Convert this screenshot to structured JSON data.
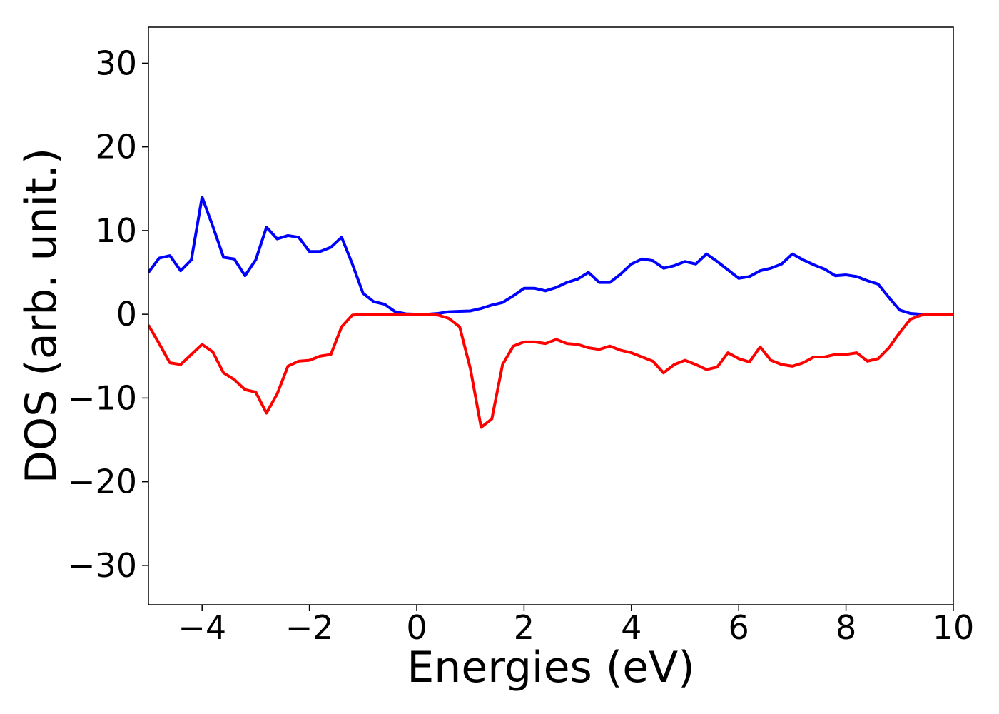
{
  "chart_data": {
    "type": "line",
    "x_label": "Energies (eV)",
    "y_label": "DOS (arb. unit.)",
    "x": [
      -5.0,
      -4.8,
      -4.6,
      -4.4,
      -4.2,
      -4.0,
      -3.8,
      -3.6,
      -3.4,
      -3.2,
      -3.0,
      -2.8,
      -2.6,
      -2.4,
      -2.2,
      -2.0,
      -1.8,
      -1.6,
      -1.4,
      -1.2,
      -1.0,
      -0.8,
      -0.6,
      -0.4,
      -0.2,
      0.0,
      0.2,
      0.4,
      0.6,
      0.8,
      1.0,
      1.2,
      1.4,
      1.6,
      1.8,
      2.0,
      2.2,
      2.4,
      2.6,
      2.8,
      3.0,
      3.2,
      3.4,
      3.6,
      3.8,
      4.0,
      4.2,
      4.4,
      4.6,
      4.8,
      5.0,
      5.2,
      5.4,
      5.6,
      5.8,
      6.0,
      6.2,
      6.4,
      6.6,
      6.8,
      7.0,
      7.2,
      7.4,
      7.6,
      7.8,
      8.0,
      8.2,
      8.4,
      8.6,
      8.8,
      9.0,
      9.2,
      9.4,
      9.6,
      9.8,
      10.0
    ],
    "series": [
      {
        "color": "#0000ff",
        "values": [
          5.0,
          6.7,
          7.0,
          5.2,
          6.5,
          14.0,
          10.5,
          6.8,
          6.6,
          4.6,
          6.5,
          10.4,
          9.0,
          9.4,
          9.2,
          7.5,
          7.5,
          8.0,
          9.2,
          6.0,
          2.5,
          1.5,
          1.2,
          0.3,
          0.05,
          0,
          0,
          0.1,
          0.3,
          0.35,
          0.4,
          0.7,
          1.1,
          1.4,
          2.2,
          3.1,
          3.1,
          2.8,
          3.2,
          3.8,
          4.2,
          5.0,
          3.8,
          3.8,
          4.8,
          6.0,
          6.6,
          6.4,
          5.5,
          5.8,
          6.3,
          6.0,
          7.2,
          6.3,
          5.3,
          4.3,
          4.5,
          5.2,
          5.5,
          6.0,
          7.2,
          6.5,
          5.9,
          5.4,
          4.6,
          4.7,
          4.5,
          4.0,
          3.6,
          2.0,
          0.5,
          0.1,
          0,
          0,
          0,
          0
        ]
      },
      {
        "color": "#ff0000",
        "values": [
          -1.3,
          -3.5,
          -5.8,
          -6.0,
          -4.8,
          -3.6,
          -4.5,
          -7.0,
          -7.8,
          -9.0,
          -9.3,
          -11.8,
          -9.5,
          -6.2,
          -5.6,
          -5.5,
          -5.0,
          -4.8,
          -1.5,
          -0.1,
          0,
          0,
          0,
          0,
          0,
          0,
          0,
          -0.1,
          -0.5,
          -1.5,
          -6.5,
          -13.5,
          -12.5,
          -6.0,
          -3.8,
          -3.3,
          -3.3,
          -3.5,
          -3.0,
          -3.5,
          -3.6,
          -4.0,
          -4.2,
          -3.8,
          -4.3,
          -4.6,
          -5.1,
          -5.6,
          -7.0,
          -6.0,
          -5.5,
          -6.0,
          -6.6,
          -6.3,
          -4.6,
          -5.3,
          -5.7,
          -3.9,
          -5.5,
          -6.0,
          -6.2,
          -5.8,
          -5.1,
          -5.1,
          -4.8,
          -4.8,
          -4.6,
          -5.6,
          -5.3,
          -4.0,
          -2.2,
          -0.6,
          -0.1,
          0,
          0,
          0
        ]
      }
    ],
    "xlim": [
      -5,
      10
    ],
    "xticks": [
      {
        "value": -4,
        "label": "−4"
      },
      {
        "value": -2,
        "label": "−2"
      },
      0,
      2,
      4,
      6,
      8,
      10
    ],
    "ylim": [
      -34.7,
      34.3
    ],
    "yticks": [
      {
        "value": -30,
        "label": "−30"
      },
      {
        "value": -20,
        "label": "−20"
      },
      {
        "value": -10,
        "label": "−10"
      },
      0,
      10,
      20,
      30
    ]
  }
}
